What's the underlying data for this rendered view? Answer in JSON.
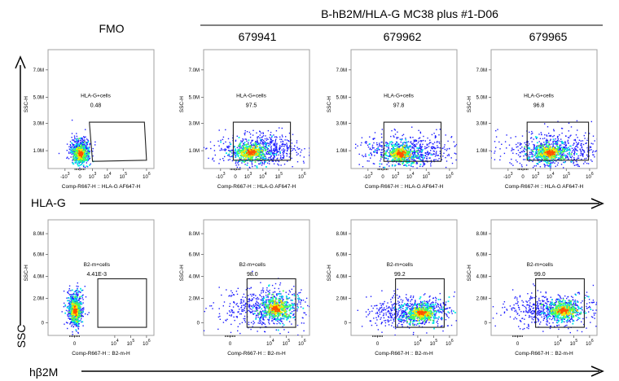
{
  "chart_data": {
    "type": "scatter",
    "subtype": "flow-cytometry-density-plots",
    "header": {
      "group_title": "B-hB2M/HLA-G MC38 plus #1-D06",
      "column_labels": [
        "FMO",
        "679941",
        "679962",
        "679965"
      ]
    },
    "axis_labels": {
      "y_main": "SSC",
      "row1_x": "HLA-G",
      "row2_x": "hβ2M"
    },
    "rows": [
      {
        "name": "HLA-G",
        "xlabel": "Comp-R667-H :: HLA-G AF647-H",
        "ylabel": "SSC-H",
        "y_ticks": [
          "7.0M",
          "5.0M",
          "3.0M",
          "1.0M"
        ],
        "x_ticks": [
          {
            "base": "-10",
            "exp": "3"
          },
          {
            "base": "0",
            "exp": ""
          },
          {
            "base": "10",
            "exp": "3"
          },
          {
            "base": "10",
            "exp": "4"
          },
          {
            "base": "10",
            "exp": "5"
          },
          {
            "base": "10",
            "exp": "6"
          }
        ],
        "panels": [
          {
            "sample": "FMO",
            "gate_name": "HLA-G+cells",
            "value": "0.48"
          },
          {
            "sample": "679941",
            "gate_name": "HLA-G+cells",
            "value": "97.5"
          },
          {
            "sample": "679962",
            "gate_name": "HLA-G+cells",
            "value": "97.8"
          },
          {
            "sample": "679965",
            "gate_name": "HLA-G+cells",
            "value": "96.8"
          }
        ]
      },
      {
        "name": "hβ2M",
        "xlabel": "Comp-R667-H :: B2-m-H",
        "ylabel": "SSC-H",
        "y_ticks": [
          "8.0M",
          "6.0M",
          "4.0M",
          "2.0M",
          "0"
        ],
        "x_ticks": [
          {
            "base": "0",
            "exp": ""
          },
          {
            "base": "10",
            "exp": "4"
          },
          {
            "base": "10",
            "exp": "5"
          },
          {
            "base": "10",
            "exp": "6"
          }
        ],
        "panels": [
          {
            "sample": "FMO",
            "gate_name": "B2-m+cells",
            "value": "4.41E-3"
          },
          {
            "sample": "679941",
            "gate_name": "B2-m+cells",
            "value": "98.0"
          },
          {
            "sample": "679962",
            "gate_name": "B2-m+cells",
            "value": "99.2"
          },
          {
            "sample": "679965",
            "gate_name": "B2-m+cells",
            "value": "99.0"
          }
        ]
      }
    ]
  },
  "colors": {
    "density_low": "#1f1fff",
    "density_mid": "#00e5e5",
    "density_midhigh": "#4cff4c",
    "density_high": "#ffe600",
    "density_peak": "#ff5000"
  }
}
